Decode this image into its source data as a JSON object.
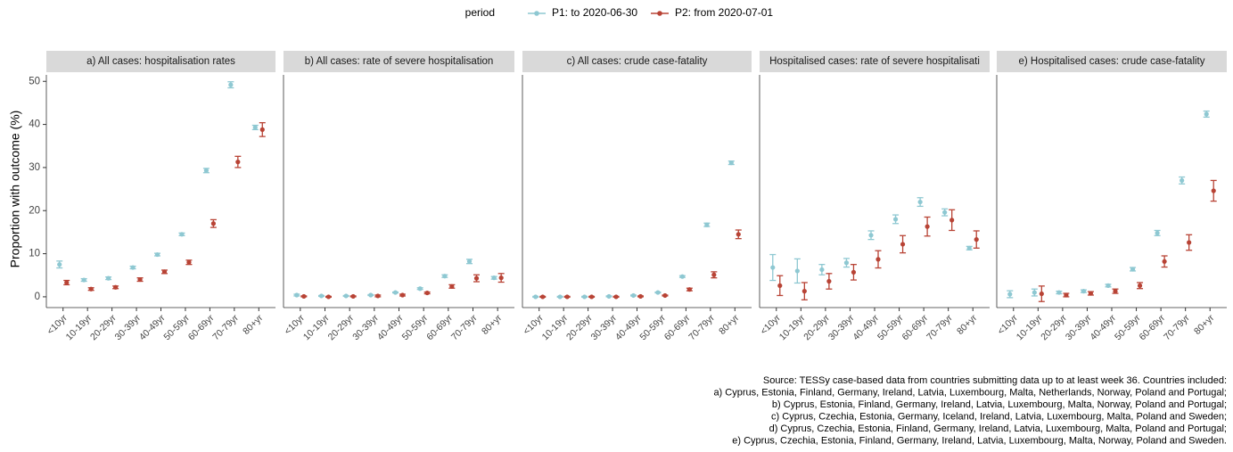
{
  "legend": {
    "title": "period"
  },
  "y_label": "Proportion with outcome (%)",
  "chart_data": [
    {
      "type": "errorbar",
      "title": "a) All cases: hospitalisation rates",
      "categories": [
        "<10yr",
        "10-19yr",
        "20-29yr",
        "30-39yr",
        "40-49yr",
        "50-59yr",
        "60-69yr",
        "70-79yr",
        "80+yr"
      ],
      "ylim": [
        -2.5,
        51.5
      ],
      "yticks": [
        0,
        10,
        20,
        30,
        40,
        50
      ],
      "series": [
        {
          "name": "P1: to 2020-06-30",
          "color": "#8ec8d2",
          "values": [
            7.5,
            3.9,
            4.3,
            6.8,
            9.8,
            14.5,
            29.3,
            49.2,
            39.3
          ],
          "errors": [
            0.8,
            0.3,
            0.3,
            0.3,
            0.3,
            0.3,
            0.5,
            0.7,
            0.5
          ]
        },
        {
          "name": "P2: from 2020-07-01",
          "color": "#b84335",
          "values": [
            3.3,
            1.8,
            2.2,
            4.0,
            5.8,
            8.0,
            17.0,
            31.3,
            38.8
          ],
          "errors": [
            0.5,
            0.3,
            0.3,
            0.4,
            0.4,
            0.5,
            0.9,
            1.3,
            1.6
          ]
        }
      ]
    },
    {
      "type": "errorbar",
      "title": "b) All cases: rate of severe hospitalisation",
      "categories": [
        "<10yr",
        "10-19yr",
        "20-29yr",
        "30-39yr",
        "40-49yr",
        "50-59yr",
        "60-69yr",
        "70-79yr",
        "80+yr"
      ],
      "ylim": [
        -2.5,
        51.5
      ],
      "series": [
        {
          "name": "P1: to 2020-06-30",
          "color": "#8ec8d2",
          "values": [
            0.4,
            0.2,
            0.2,
            0.4,
            1.0,
            1.9,
            4.8,
            8.2,
            4.4
          ],
          "errors": [
            0.2,
            0.1,
            0.1,
            0.1,
            0.1,
            0.2,
            0.3,
            0.5,
            0.3
          ]
        },
        {
          "name": "P2: from 2020-07-01",
          "color": "#b84335",
          "values": [
            0.1,
            0.0,
            0.1,
            0.2,
            0.4,
            0.9,
            2.4,
            4.3,
            4.4
          ],
          "errors": [
            0.1,
            0.1,
            0.1,
            0.2,
            0.2,
            0.2,
            0.4,
            0.8,
            1.0
          ]
        }
      ]
    },
    {
      "type": "errorbar",
      "title": "c) All cases: crude case-fatality",
      "categories": [
        "<10yr",
        "10-19yr",
        "20-29yr",
        "30-39yr",
        "40-49yr",
        "50-59yr",
        "60-69yr",
        "70-79yr",
        "80+yr"
      ],
      "ylim": [
        -2.5,
        51.5
      ],
      "series": [
        {
          "name": "P1: to 2020-06-30",
          "color": "#8ec8d2",
          "values": [
            0.0,
            0.0,
            0.0,
            0.1,
            0.3,
            1.0,
            4.7,
            16.7,
            31.1
          ],
          "errors": [
            0.1,
            0.1,
            0.1,
            0.1,
            0.1,
            0.1,
            0.2,
            0.4,
            0.4
          ]
        },
        {
          "name": "P2: from 2020-07-01",
          "color": "#b84335",
          "values": [
            0.0,
            0.0,
            0.0,
            0.0,
            0.1,
            0.3,
            1.7,
            5.1,
            14.5
          ],
          "errors": [
            0.1,
            0.1,
            0.1,
            0.1,
            0.1,
            0.1,
            0.3,
            0.7,
            1.0
          ]
        }
      ]
    },
    {
      "type": "errorbar",
      "title": "Hospitalised cases: rate of severe hospitalisati",
      "categories": [
        "<10yr",
        "10-19yr",
        "20-29yr",
        "30-39yr",
        "40-49yr",
        "50-59yr",
        "60-69yr",
        "70-79yr",
        "80+yr"
      ],
      "ylim": [
        -2.5,
        51.5
      ],
      "series": [
        {
          "name": "P1: to 2020-06-30",
          "color": "#8ec8d2",
          "values": [
            6.8,
            6.0,
            6.3,
            7.9,
            14.3,
            18.0,
            22.0,
            19.6,
            11.3
          ],
          "errors": [
            3.0,
            2.8,
            1.2,
            1.0,
            1.0,
            1.0,
            1.0,
            0.8,
            0.4
          ]
        },
        {
          "name": "P2: from 2020-07-01",
          "color": "#b84335",
          "values": [
            2.6,
            1.3,
            3.6,
            5.7,
            8.7,
            12.2,
            16.3,
            17.8,
            13.3
          ],
          "errors": [
            2.3,
            2.0,
            1.8,
            1.8,
            2.0,
            2.0,
            2.2,
            2.4,
            2.0
          ]
        }
      ]
    },
    {
      "type": "errorbar",
      "title": "e) Hospitalised cases: crude case-fatality",
      "categories": [
        "<10yr",
        "10-19yr",
        "20-29yr",
        "30-39yr",
        "40-49yr",
        "50-59yr",
        "60-69yr",
        "70-79yr",
        "80+yr"
      ],
      "ylim": [
        -2.5,
        51.5
      ],
      "series": [
        {
          "name": "P1: to 2020-06-30",
          "color": "#8ec8d2",
          "values": [
            0.6,
            1.0,
            1.0,
            1.3,
            2.6,
            6.4,
            14.8,
            27.0,
            42.4
          ],
          "errors": [
            0.8,
            0.8,
            0.3,
            0.3,
            0.3,
            0.4,
            0.6,
            0.8,
            0.7
          ]
        },
        {
          "name": "P2: from 2020-07-01",
          "color": "#b84335",
          "values": [
            null,
            0.7,
            0.4,
            0.8,
            1.3,
            2.6,
            8.2,
            12.6,
            24.6
          ],
          "errors": [
            null,
            1.8,
            0.4,
            0.4,
            0.5,
            0.7,
            1.3,
            1.8,
            2.4
          ]
        }
      ]
    }
  ],
  "source": [
    "Source: TESSy case-based data from countries submitting data up to at least week 36. Countries included:",
    "a) Cyprus, Estonia, Finland, Germany, Ireland, Latvia, Luxembourg, Malta, Netherlands, Norway, Poland and Portugal;",
    "b) Cyprus, Estonia, Finland, Germany, Ireland, Latvia, Luxembourg, Malta, Norway, Poland and Portugal;",
    "c) Cyprus, Czechia, Estonia, Germany, Iceland, Ireland, Latvia, Luxembourg, Malta, Poland and Sweden;",
    "d) Cyprus, Czechia, Estonia, Finland, Germany, Ireland, Latvia, Luxembourg, Malta, Poland and Portugal;",
    "e) Cyprus, Czechia, Estonia, Finland, Germany, Ireland, Latvia, Luxembourg, Malta, Norway, Poland and Sweden."
  ]
}
